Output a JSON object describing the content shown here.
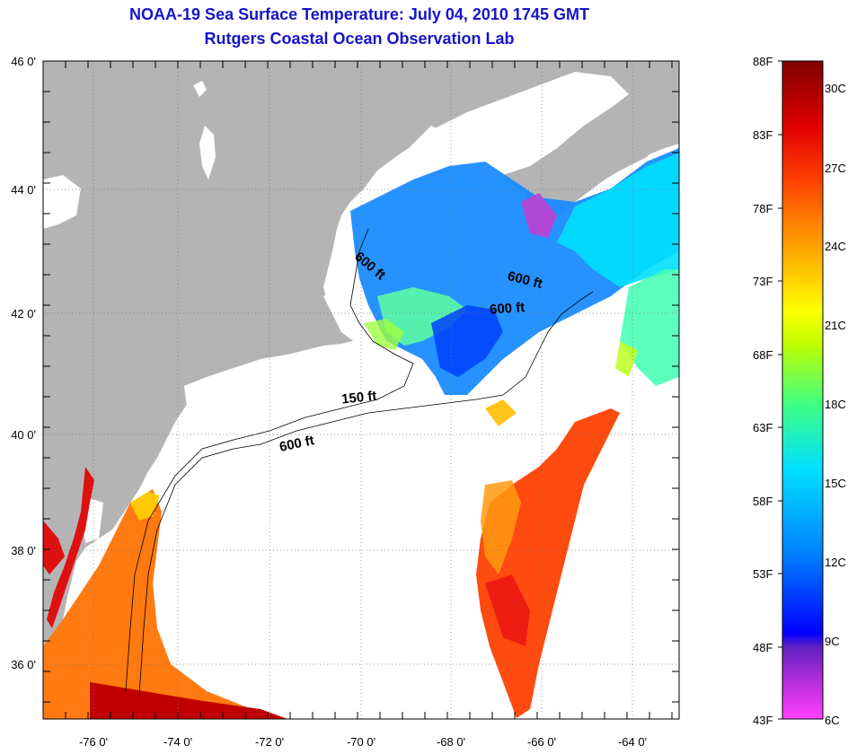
{
  "header": {
    "title": "NOAA-19 Sea Surface Temperature:  July 04, 2010 1745 GMT",
    "subtitle": "Rutgers Coastal Ocean Observation Lab"
  },
  "map": {
    "lat_labels": [
      "46 0'",
      "44 0'",
      "42 0'",
      "40 0'",
      "38 0'",
      "36 0'"
    ],
    "lon_labels": [
      "-76 0'",
      "-74 0'",
      "-72 0'",
      "-70 0'",
      "-68 0'",
      "-66 0'",
      "-64 0'"
    ],
    "contours": [
      "600 ft",
      "600 ft",
      "600 ft",
      "150 ft",
      "600 ft"
    ],
    "colors": {
      "land": "#b4b4b4",
      "cloud": "#ffffff"
    }
  },
  "colorbar": {
    "fahrenheit": [
      "88F",
      "83F",
      "78F",
      "73F",
      "68F",
      "63F",
      "58F",
      "53F",
      "48F",
      "43F"
    ],
    "celsius": [
      "30C",
      "27C",
      "24C",
      "21C",
      "18C",
      "15C",
      "12C",
      "9C",
      "6C"
    ],
    "colors": [
      "#ff40ff",
      "#8020c0",
      "#0000ff",
      "#0080ff",
      "#00e0ff",
      "#40ff80",
      "#c0ff00",
      "#ffff00",
      "#ffa000",
      "#ff4000",
      "#e00000",
      "#800000"
    ]
  }
}
